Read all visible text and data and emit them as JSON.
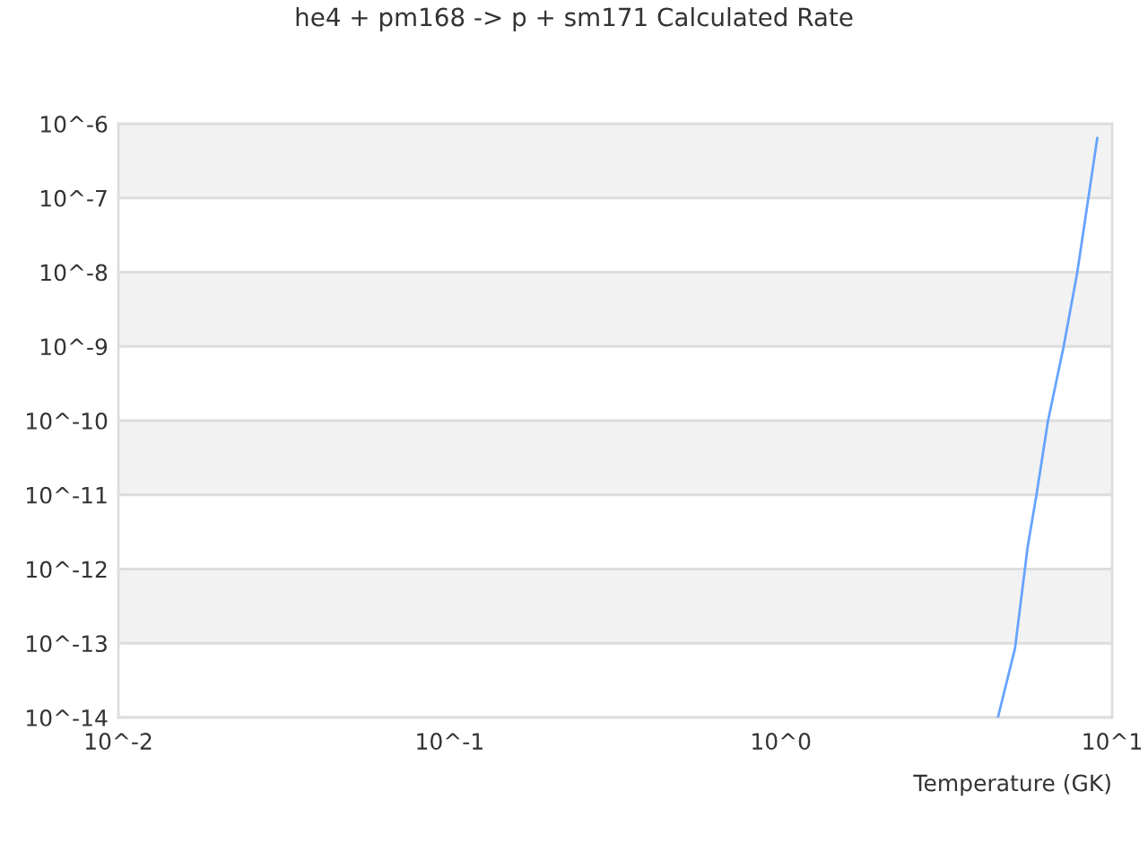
{
  "chart_data": {
    "type": "line",
    "title": "he4 + pm168 -> p + sm171 Calculated Rate",
    "xlabel": "Temperature (GK)",
    "log": "xy",
    "grid": "y",
    "xlim": [
      0.01,
      10
    ],
    "xticks": [
      {
        "value": 0.01,
        "label": "10^-2"
      },
      {
        "value": 0.1,
        "label": "10^-1"
      },
      {
        "value": 1,
        "label": "10^0"
      },
      {
        "value": 10,
        "label": "10^1"
      }
    ],
    "ylim": [
      1e-14,
      1e-06
    ],
    "yticks": [
      {
        "value": 1e-14,
        "label": "10^-14"
      },
      {
        "value": 1e-13,
        "label": "10^-13"
      },
      {
        "value": 1e-12,
        "label": "10^-12"
      },
      {
        "value": 1e-11,
        "label": "10^-11"
      },
      {
        "value": 1e-10,
        "label": "10^-10"
      },
      {
        "value": 1e-09,
        "label": "10^-9"
      },
      {
        "value": 1e-08,
        "label": "10^-8"
      },
      {
        "value": 1e-07,
        "label": "10^-7"
      },
      {
        "value": 1e-06,
        "label": "10^-6"
      }
    ],
    "bands": [
      {
        "axis": "y",
        "from": 1e-07,
        "to": 1e-06,
        "color": "#f2f2f2"
      },
      {
        "axis": "y",
        "from": 1e-09,
        "to": 1e-08,
        "color": "#f2f2f2"
      },
      {
        "axis": "y",
        "from": 1e-11,
        "to": 1e-10,
        "color": "#f2f2f2"
      },
      {
        "axis": "y",
        "from": 1e-13,
        "to": 1e-12,
        "color": "#f2f2f2"
      }
    ],
    "series": [
      {
        "color": "#66a3ff",
        "x": [
          4.52,
          5.09,
          5.56,
          5.9,
          6.4,
          7.14,
          7.85,
          9.02
        ],
        "values": [
          1e-14,
          8.5e-14,
          2e-12,
          9.5e-12,
          9.8e-11,
          1e-09,
          1e-08,
          6.4e-07
        ]
      }
    ]
  }
}
